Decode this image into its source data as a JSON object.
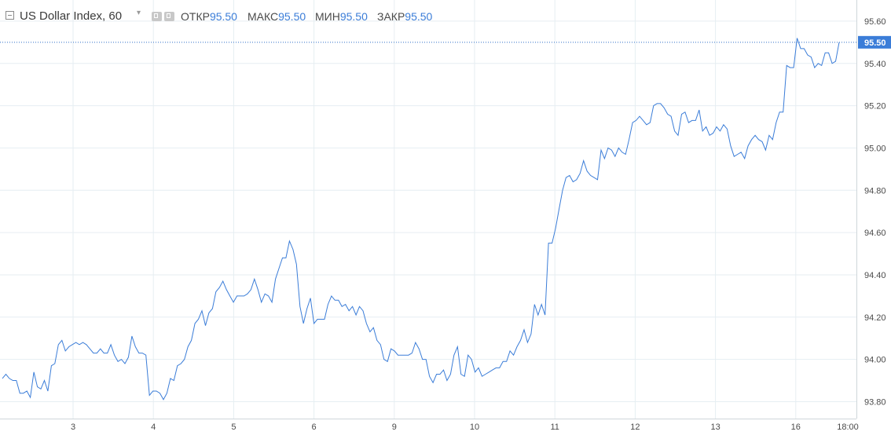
{
  "header": {
    "title": "US Dollar Index, 60",
    "ohlc": [
      {
        "label": "ОТКР",
        "value": "95.50"
      },
      {
        "label": "МАКС",
        "value": "95.50"
      },
      {
        "label": "МИН",
        "value": "95.50"
      },
      {
        "label": "ЗАКР",
        "value": "95.50"
      }
    ]
  },
  "colors": {
    "line": "#3b7dd8",
    "grid": "#e6eef2",
    "axis_text": "#4a4a4a",
    "price_badge": "#3b7dd8",
    "price_line": "#2f6fc8"
  },
  "chart_data": {
    "type": "line",
    "y_ticks": [
      "93.80",
      "94.00",
      "94.20",
      "94.40",
      "94.60",
      "94.80",
      "95.00",
      "95.20",
      "95.40",
      "95.60"
    ],
    "ylim": [
      93.72,
      95.7
    ],
    "x_ticks": [
      "3",
      "4",
      "5",
      "6",
      "9",
      "10",
      "11",
      "12",
      "13",
      "16",
      "18:00"
    ],
    "last_price": "95.50",
    "grid": true,
    "series": [
      {
        "values": [
          93.91,
          93.93,
          93.91,
          93.9,
          93.9,
          93.84,
          93.84,
          93.85,
          93.82,
          93.94,
          93.87,
          93.86,
          93.9,
          93.85,
          93.97,
          93.98,
          94.07,
          94.09,
          94.04,
          94.06,
          94.07,
          94.08,
          94.07,
          94.08,
          94.07,
          94.05,
          94.03,
          94.03,
          94.05,
          94.03,
          94.03,
          94.07,
          94.02,
          93.99,
          94.0,
          93.98,
          94.01,
          94.11,
          94.06,
          94.03,
          94.03,
          94.02,
          93.83,
          93.85,
          93.85,
          93.84,
          93.81,
          93.84,
          93.91,
          93.9,
          93.97,
          93.98,
          94.0,
          94.06,
          94.09,
          94.17,
          94.19,
          94.23,
          94.16,
          94.22,
          94.24,
          94.32,
          94.34,
          94.37,
          94.33,
          94.3,
          94.27,
          94.3,
          94.3,
          94.3,
          94.31,
          94.33,
          94.38,
          94.33,
          94.27,
          94.31,
          94.3,
          94.27,
          94.38,
          94.43,
          94.48,
          94.48,
          94.56,
          94.52,
          94.45,
          94.25,
          94.17,
          94.24,
          94.29,
          94.17,
          94.19,
          94.19,
          94.19,
          94.26,
          94.3,
          94.28,
          94.28,
          94.25,
          94.26,
          94.23,
          94.25,
          94.21,
          94.25,
          94.23,
          94.17,
          94.13,
          94.15,
          94.09,
          94.07,
          94.0,
          93.99,
          94.05,
          94.04,
          94.02,
          94.02,
          94.02,
          94.02,
          94.03,
          94.08,
          94.05,
          94.0,
          94.0,
          93.92,
          93.89,
          93.93,
          93.93,
          93.95,
          93.9,
          93.93,
          94.02,
          94.06,
          93.93,
          93.92,
          94.02,
          94.0,
          93.94,
          93.96,
          93.92,
          93.93,
          93.94,
          93.95,
          93.96,
          93.96,
          93.99,
          93.99,
          94.04,
          94.02,
          94.06,
          94.09,
          94.14,
          94.08,
          94.12,
          94.26,
          94.21,
          94.26,
          94.21,
          94.55,
          94.55,
          94.62,
          94.71,
          94.8,
          94.86,
          94.87,
          94.84,
          94.85,
          94.88,
          94.94,
          94.89,
          94.87,
          94.86,
          94.85,
          94.99,
          94.95,
          95.0,
          94.99,
          94.96,
          95.0,
          94.98,
          94.97,
          95.04,
          95.12,
          95.13,
          95.15,
          95.13,
          95.11,
          95.12,
          95.2,
          95.21,
          95.21,
          95.19,
          95.16,
          95.15,
          95.08,
          95.06,
          95.16,
          95.17,
          95.12,
          95.13,
          95.13,
          95.18,
          95.08,
          95.1,
          95.06,
          95.07,
          95.1,
          95.08,
          95.11,
          95.09,
          95.01,
          94.96,
          94.97,
          94.98,
          94.95,
          95.01,
          95.04,
          95.06,
          95.04,
          95.03,
          94.99,
          95.06,
          95.04,
          95.12,
          95.17,
          95.17,
          95.39,
          95.38,
          95.38,
          95.52,
          95.47,
          95.47,
          95.44,
          95.43,
          95.38,
          95.4,
          95.39,
          95.45,
          95.45,
          95.4,
          95.41,
          95.5
        ]
      }
    ]
  }
}
